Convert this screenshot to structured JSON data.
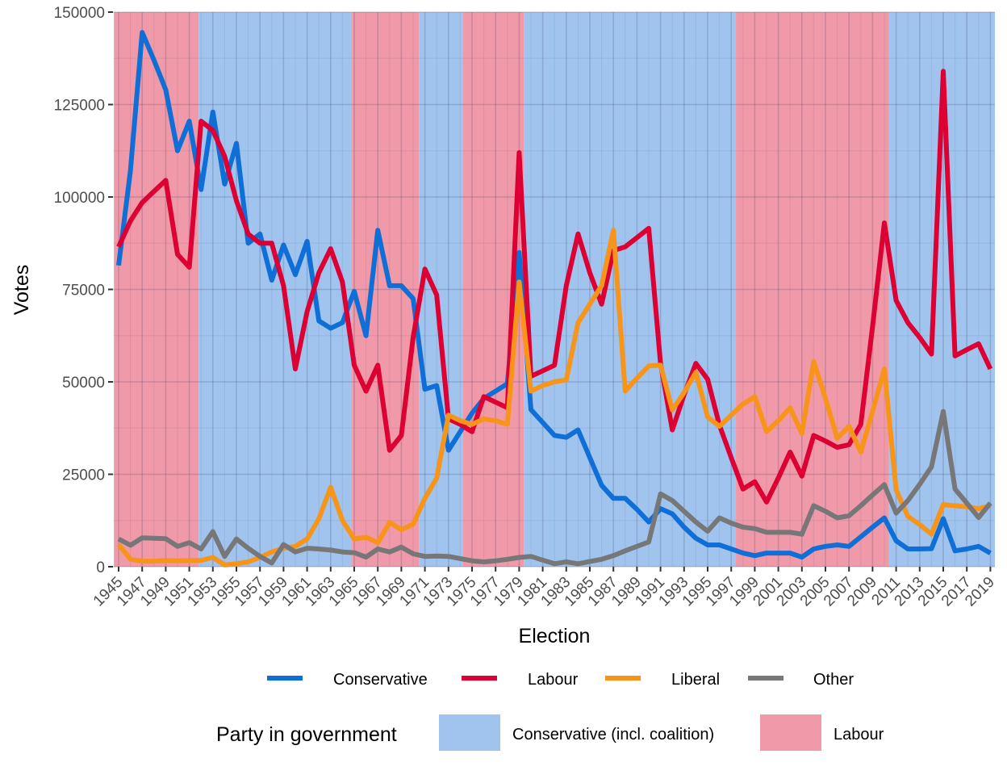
{
  "chart_data": {
    "type": "line",
    "title": "",
    "xlabel": "Election",
    "ylabel": "Votes",
    "xlim": [
      1945,
      2019
    ],
    "ylim": [
      0,
      150000
    ],
    "y_ticks": [
      0,
      25000,
      50000,
      75000,
      100000,
      125000,
      150000
    ],
    "y_tick_labels": [
      "0",
      "25000",
      "50000",
      "75000",
      "100000",
      "125000",
      "150000"
    ],
    "x_ticks": [
      1945,
      1947,
      1949,
      1951,
      1953,
      1955,
      1957,
      1959,
      1961,
      1963,
      1965,
      1967,
      1969,
      1971,
      1973,
      1975,
      1977,
      1979,
      1981,
      1983,
      1985,
      1987,
      1989,
      1991,
      1993,
      1995,
      1997,
      1999,
      2001,
      2003,
      2005,
      2007,
      2009,
      2011,
      2013,
      2015,
      2017,
      2019
    ],
    "x_tick_labels": [
      "1945",
      "1947",
      "1949",
      "1951",
      "1953",
      "1955",
      "1957",
      "1959",
      "1961",
      "1963",
      "1965",
      "1967",
      "1969",
      "1971",
      "1973",
      "1975",
      "1977",
      "1979",
      "1981",
      "1983",
      "1985",
      "1987",
      "1989",
      "1991",
      "1993",
      "1995",
      "1997",
      "1999",
      "2001",
      "2003",
      "2005",
      "2007",
      "2009",
      "2011",
      "2013",
      "2015",
      "2017",
      "2019"
    ],
    "grid": true,
    "x": [
      1945,
      1946,
      1947,
      1948,
      1949,
      1950,
      1951,
      1952,
      1953,
      1954,
      1955,
      1956,
      1957,
      1958,
      1959,
      1960,
      1961,
      1962,
      1963,
      1964,
      1965,
      1966,
      1967,
      1968,
      1969,
      1970,
      1971,
      1972,
      1973,
      1974,
      1975,
      1976,
      1977,
      1978,
      1979,
      1980,
      1981,
      1982,
      1983,
      1984,
      1985,
      1986,
      1987,
      1988,
      1989,
      1990,
      1991,
      1992,
      1993,
      1994,
      1995,
      1996,
      1997,
      1998,
      1999,
      2000,
      2001,
      2002,
      2003,
      2004,
      2005,
      2006,
      2007,
      2008,
      2009,
      2010,
      2011,
      2012,
      2013,
      2014,
      2015,
      2016,
      2017,
      2018,
      2019
    ],
    "series": [
      {
        "name": "Conservative",
        "color": "#0f6fd6",
        "values": [
          81500,
          107000,
          144500,
          137000,
          129000,
          112500,
          120500,
          102000,
          123000,
          103500,
          114500,
          87500,
          90000,
          77500,
          87000,
          79000,
          88000,
          66500,
          64500,
          66000,
          74500,
          62500,
          91000,
          76000,
          76000,
          72500,
          48000,
          49000,
          31500,
          36500,
          41500,
          45500,
          47500,
          49500,
          85000,
          42500,
          39000,
          35500,
          35000,
          37000,
          29500,
          22000,
          18500,
          18500,
          15500,
          12100,
          15700,
          14300,
          10700,
          7700,
          5900,
          5900,
          4800,
          3700,
          3000,
          3700,
          3700,
          3700,
          2600,
          4800,
          5500,
          5900,
          5500,
          8100,
          10700,
          13200,
          7000,
          4800,
          4800,
          4900,
          13000,
          4300,
          4800,
          5500,
          3700
        ]
      },
      {
        "name": "Labour",
        "color": "#dc0033",
        "values": [
          86500,
          93500,
          98500,
          101500,
          104500,
          84500,
          81000,
          120500,
          118000,
          111000,
          99000,
          90000,
          87500,
          87500,
          76000,
          53500,
          69000,
          79500,
          86000,
          77000,
          54500,
          47500,
          54500,
          31500,
          35500,
          62000,
          80500,
          73500,
          40000,
          38500,
          36500,
          46000,
          44500,
          43000,
          112000,
          51500,
          53000,
          54500,
          76000,
          90000,
          79500,
          71000,
          85500,
          86500,
          89000,
          91500,
          55000,
          37000,
          46500,
          55000,
          50700,
          38300,
          29500,
          21000,
          23000,
          17500,
          24000,
          31000,
          24500,
          35500,
          34000,
          32300,
          33000,
          38500,
          65000,
          93000,
          72000,
          66000,
          62000,
          57500,
          134000,
          57000,
          58700,
          60300,
          53500
        ]
      },
      {
        "name": "Liberal",
        "color": "#f7951b",
        "values": [
          6000,
          2000,
          1500,
          1500,
          1700,
          1600,
          1700,
          1700,
          2500,
          500,
          800,
          1300,
          2500,
          4000,
          5000,
          5500,
          7500,
          13000,
          21500,
          12500,
          7500,
          8000,
          6500,
          12000,
          10000,
          11500,
          18500,
          24000,
          41000,
          39500,
          38500,
          40000,
          39500,
          38500,
          77000,
          47500,
          49000,
          50000,
          50500,
          66000,
          71000,
          76000,
          91000,
          47500,
          51000,
          54300,
          54500,
          42400,
          47100,
          52600,
          40500,
          38000,
          41000,
          44000,
          46000,
          36500,
          39500,
          43000,
          36000,
          55500,
          45500,
          34700,
          38000,
          31000,
          42000,
          53500,
          20800,
          13600,
          11400,
          8800,
          16800,
          16500,
          16200,
          15700,
          16500
        ]
      },
      {
        "name": "Other",
        "color": "#777777",
        "values": [
          7500,
          5800,
          7800,
          7700,
          7600,
          5500,
          6500,
          4800,
          9500,
          2800,
          7500,
          5000,
          2800,
          1000,
          6000,
          4000,
          5000,
          4800,
          4500,
          4000,
          3800,
          2600,
          4800,
          4000,
          5300,
          3500,
          2800,
          2900,
          2800,
          2200,
          1600,
          1300,
          1600,
          2000,
          2500,
          2800,
          1800,
          800,
          1300,
          800,
          1400,
          2000,
          3000,
          4300,
          5500,
          6700,
          19700,
          17900,
          15000,
          12100,
          9600,
          13200,
          11800,
          10700,
          10300,
          9300,
          9300,
          9300,
          8800,
          16500,
          15000,
          13200,
          13800,
          16500,
          19400,
          22200,
          14500,
          17900,
          22300,
          27000,
          42000,
          21000,
          17200,
          13300,
          17200
        ]
      }
    ],
    "government_periods": [
      {
        "party": "Labour",
        "start": 1944.6,
        "end": 1951.8
      },
      {
        "party": "Conservative",
        "start": 1951.8,
        "end": 1964.8
      },
      {
        "party": "Labour",
        "start": 1964.8,
        "end": 1970.5
      },
      {
        "party": "Conservative",
        "start": 1970.5,
        "end": 1974.2
      },
      {
        "party": "Labour",
        "start": 1974.2,
        "end": 1979.4
      },
      {
        "party": "Conservative",
        "start": 1979.4,
        "end": 1997.4
      },
      {
        "party": "Labour",
        "start": 1997.4,
        "end": 2010.4
      },
      {
        "party": "Conservative",
        "start": 2010.4,
        "end": 2019.4
      }
    ],
    "legend": {
      "placement": "bottom",
      "line_items": [
        {
          "label": "Conservative",
          "color": "#0f6fd6"
        },
        {
          "label": "Labour",
          "color": "#dc0033"
        },
        {
          "label": "Liberal",
          "color": "#f7951b"
        },
        {
          "label": "Other",
          "color": "#777777"
        }
      ],
      "fill_title": "Party in government",
      "fill_items": [
        {
          "label": "Conservative (incl. coalition)",
          "party": "Conservative",
          "color": "#a0c4ee"
        },
        {
          "label": "Labour",
          "party": "Labour",
          "color": "#f099a8"
        }
      ]
    }
  }
}
